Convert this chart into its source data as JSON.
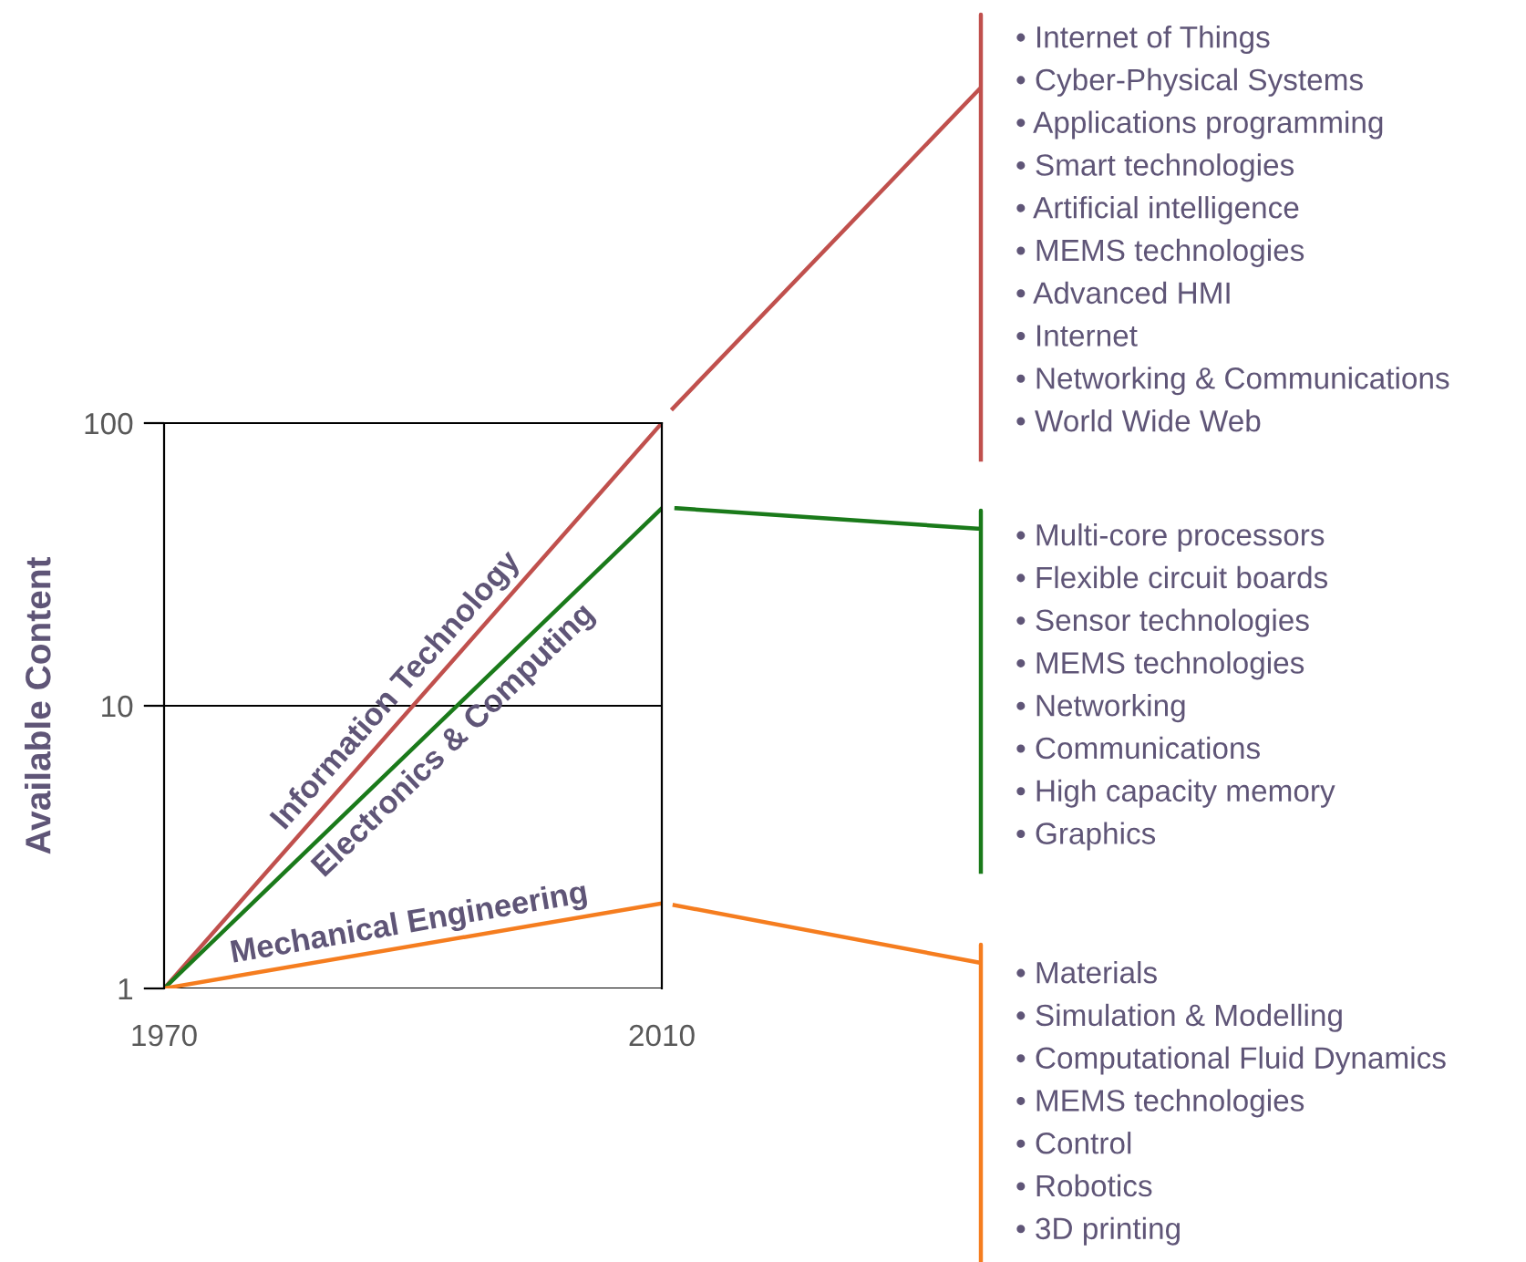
{
  "chart_data": {
    "type": "line",
    "ylabel": "Available Content",
    "log": "y",
    "x": [
      1970,
      2010
    ],
    "xlim": [
      1970,
      2010
    ],
    "xticks": [
      1970,
      2010
    ],
    "ylim": [
      1,
      100
    ],
    "yticks": [
      1,
      10,
      100
    ],
    "grid": "y",
    "series": [
      {
        "name": "Information Technology",
        "color": "#c0504d",
        "values": [
          1,
          100
        ]
      },
      {
        "name": "Electronics & Computing",
        "color": "#1a7a1a",
        "values": [
          1,
          50
        ]
      },
      {
        "name": "Mechanical Engineering",
        "color": "#f57d1f",
        "values": [
          1,
          2
        ]
      }
    ],
    "annotations": [
      "• Internet of Things\n• Cyber-Physical Systems\n• Applications programming\n• Smart technologies\n• Artificial intelligence\n• MEMS technologies\n• Advanced HMI\n• Internet\n• Networking & Communications\n• World Wide Web",
      "• Multi-core processors\n• Flexible circuit boards\n• Sensor technologies\n• MEMS technologies\n• Networking\n• Communications\n• High capacity memory\n• Graphics",
      "• Materials\n• Simulation & Modelling\n• Computational Fluid Dynamics\n• MEMS technologies\n• Control\n• Robotics\n• 3D printing"
    ]
  }
}
